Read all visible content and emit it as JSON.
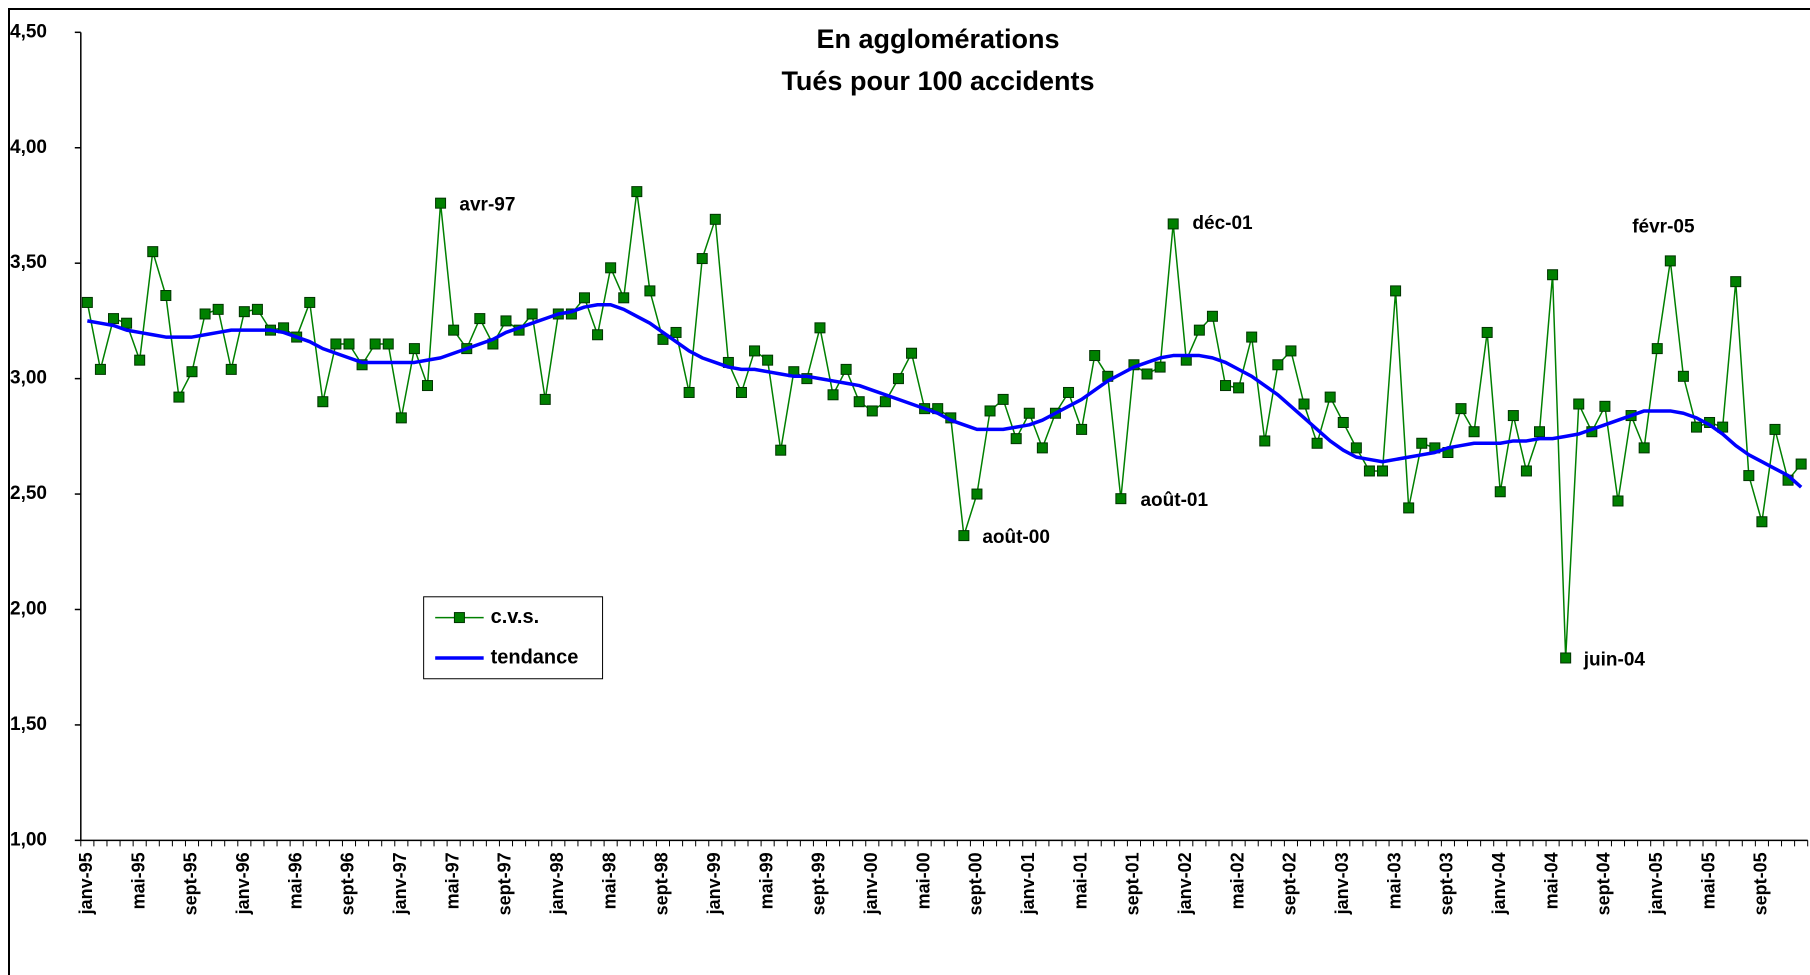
{
  "chart_data": {
    "type": "line",
    "title": "En agglomérations",
    "subtitle": "Tués pour 100 accidents",
    "categories": [
      "janv-95",
      null,
      null,
      null,
      "mai-95",
      null,
      null,
      null,
      "sept-95",
      null,
      null,
      null,
      "janv-96",
      null,
      null,
      null,
      "mai-96",
      null,
      null,
      null,
      "sept-96",
      null,
      null,
      null,
      "janv-97",
      null,
      null,
      null,
      "mai-97",
      null,
      null,
      null,
      "sept-97",
      null,
      null,
      null,
      "janv-98",
      null,
      null,
      null,
      "mai-98",
      null,
      null,
      null,
      "sept-98",
      null,
      null,
      null,
      "janv-99",
      null,
      null,
      null,
      "mai-99",
      null,
      null,
      null,
      "sept-99",
      null,
      null,
      null,
      "janv-00",
      null,
      null,
      null,
      "mai-00",
      null,
      null,
      null,
      "sept-00",
      null,
      null,
      null,
      "janv-01",
      null,
      null,
      null,
      "mai-01",
      null,
      null,
      null,
      "sept-01",
      null,
      null,
      null,
      "janv-02",
      null,
      null,
      null,
      "mai-02",
      null,
      null,
      null,
      "sept-02",
      null,
      null,
      null,
      "janv-03",
      null,
      null,
      null,
      "mai-03",
      null,
      null,
      null,
      "sept-03",
      null,
      null,
      null,
      "janv-04",
      null,
      null,
      null,
      "mai-04",
      null,
      null,
      null,
      "sept-04",
      null,
      null,
      null,
      "janv-05",
      null,
      null,
      null,
      "mai-05",
      null,
      null,
      null,
      "sept-05",
      null,
      null,
      null
    ],
    "series": [
      {
        "name": "c.v.s.",
        "color": "#008000",
        "marker": "square",
        "values": [
          3.33,
          3.04,
          3.26,
          3.24,
          3.08,
          3.55,
          3.36,
          2.92,
          3.03,
          3.28,
          3.3,
          3.04,
          3.29,
          3.3,
          3.21,
          3.22,
          3.18,
          3.33,
          2.9,
          3.15,
          3.15,
          3.06,
          3.15,
          3.15,
          2.83,
          3.13,
          2.97,
          3.76,
          3.21,
          3.13,
          3.26,
          3.15,
          3.25,
          3.21,
          3.28,
          2.91,
          3.28,
          3.28,
          3.35,
          3.19,
          3.48,
          3.35,
          3.81,
          3.38,
          3.17,
          3.2,
          2.94,
          3.52,
          3.69,
          3.07,
          2.94,
          3.12,
          3.08,
          2.69,
          3.03,
          3.0,
          3.22,
          2.93,
          3.04,
          2.9,
          2.86,
          2.9,
          3.0,
          3.11,
          2.87,
          2.87,
          2.83,
          2.32,
          2.5,
          2.86,
          2.91,
          2.74,
          2.85,
          2.7,
          2.85,
          2.94,
          2.78,
          3.1,
          3.01,
          2.48,
          3.06,
          3.02,
          3.05,
          3.67,
          3.08,
          3.21,
          3.27,
          2.97,
          2.96,
          3.18,
          2.73,
          3.06,
          3.12,
          2.89,
          2.72,
          2.92,
          2.81,
          2.7,
          2.6,
          2.6,
          3.38,
          2.44,
          2.72,
          2.7,
          2.68,
          2.87,
          2.77,
          3.2,
          2.51,
          2.84,
          2.6,
          2.77,
          3.45,
          1.79,
          2.89,
          2.77,
          2.88,
          2.47,
          2.84,
          2.7,
          3.13,
          3.51,
          3.01,
          2.79,
          2.81,
          2.79,
          3.42,
          2.58,
          2.38,
          2.78,
          2.56,
          2.63
        ]
      },
      {
        "name": "tendance",
        "color": "#0000ff",
        "values": [
          3.25,
          3.24,
          3.23,
          3.21,
          3.2,
          3.19,
          3.18,
          3.18,
          3.18,
          3.19,
          3.2,
          3.21,
          3.21,
          3.21,
          3.21,
          3.2,
          3.18,
          3.16,
          3.13,
          3.11,
          3.09,
          3.07,
          3.07,
          3.07,
          3.07,
          3.07,
          3.08,
          3.09,
          3.11,
          3.13,
          3.15,
          3.17,
          3.2,
          3.22,
          3.24,
          3.26,
          3.28,
          3.29,
          3.31,
          3.32,
          3.32,
          3.3,
          3.27,
          3.24,
          3.2,
          3.16,
          3.12,
          3.09,
          3.07,
          3.05,
          3.04,
          3.04,
          3.03,
          3.02,
          3.01,
          3.01,
          3.0,
          2.99,
          2.98,
          2.97,
          2.95,
          2.93,
          2.91,
          2.89,
          2.87,
          2.85,
          2.82,
          2.8,
          2.78,
          2.78,
          2.78,
          2.79,
          2.8,
          2.82,
          2.85,
          2.88,
          2.91,
          2.95,
          2.99,
          3.02,
          3.05,
          3.07,
          3.09,
          3.1,
          3.1,
          3.1,
          3.09,
          3.07,
          3.04,
          3.01,
          2.97,
          2.93,
          2.88,
          2.83,
          2.78,
          2.73,
          2.69,
          2.66,
          2.65,
          2.64,
          2.65,
          2.66,
          2.67,
          2.68,
          2.7,
          2.71,
          2.72,
          2.72,
          2.72,
          2.73,
          2.73,
          2.74,
          2.74,
          2.75,
          2.76,
          2.78,
          2.8,
          2.82,
          2.84,
          2.86,
          2.86,
          2.86,
          2.85,
          2.83,
          2.8,
          2.76,
          2.71,
          2.67,
          2.64,
          2.61,
          2.58,
          2.53
        ]
      }
    ],
    "annotations": [
      "avr-97",
      "août-00",
      "août-01",
      "déc-01",
      "juin-04",
      "févr-05"
    ],
    "ylim": [
      1,
      4.5
    ],
    "yticks": [
      {
        "value": 1,
        "label": "1,00"
      },
      {
        "value": 1.5,
        "label": "1,50"
      },
      {
        "value": 2,
        "label": "2,00"
      },
      {
        "value": 2.5,
        "label": "2,50"
      },
      {
        "value": 3,
        "label": "3,00"
      },
      {
        "value": 3.5,
        "label": "3,50"
      },
      {
        "value": 4,
        "label": "4,00"
      },
      {
        "value": 4.5,
        "label": "4,50"
      }
    ],
    "grid": false
  }
}
